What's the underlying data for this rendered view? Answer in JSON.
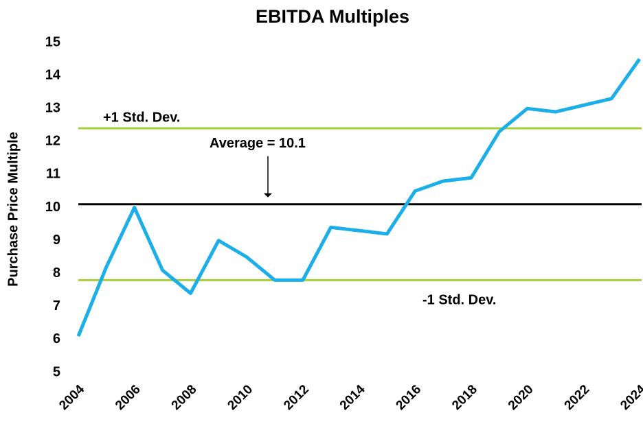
{
  "chart_data": {
    "type": "line",
    "title": "EBITDA Multiples",
    "y_label": "Purchase Price Multiple",
    "x": [
      2004,
      2005,
      2006,
      2007,
      2008,
      2009,
      2010,
      2011,
      2012,
      2013,
      2014,
      2015,
      2016,
      2017,
      2018,
      2019,
      2020,
      2021,
      2022,
      2023,
      2024
    ],
    "values": [
      6.1,
      8.2,
      10.0,
      8.1,
      7.4,
      9.0,
      8.5,
      7.8,
      7.8,
      9.4,
      9.3,
      9.2,
      10.5,
      10.8,
      10.9,
      12.3,
      13.0,
      12.9,
      13.1,
      13.3,
      14.5
    ],
    "color": "#1aafe8",
    "xlim": [
      2004,
      2024
    ],
    "xticks": [
      2004,
      2006,
      2008,
      2010,
      2012,
      2014,
      2016,
      2018,
      2020,
      2022,
      2024
    ],
    "ylim": [
      5,
      15
    ],
    "yticks": [
      5,
      6,
      7,
      8,
      9,
      10,
      11,
      12,
      13,
      14,
      15
    ],
    "reference_lines": [
      {
        "label": "+1 Std. Dev.",
        "value": 12.4,
        "color": "#a6ce39"
      },
      {
        "label": "Average = 10.1",
        "value": 10.1,
        "color": "#000000"
      },
      {
        "label": "-1 Std. Dev.",
        "value": 7.8,
        "color": "#a6ce39"
      }
    ]
  }
}
